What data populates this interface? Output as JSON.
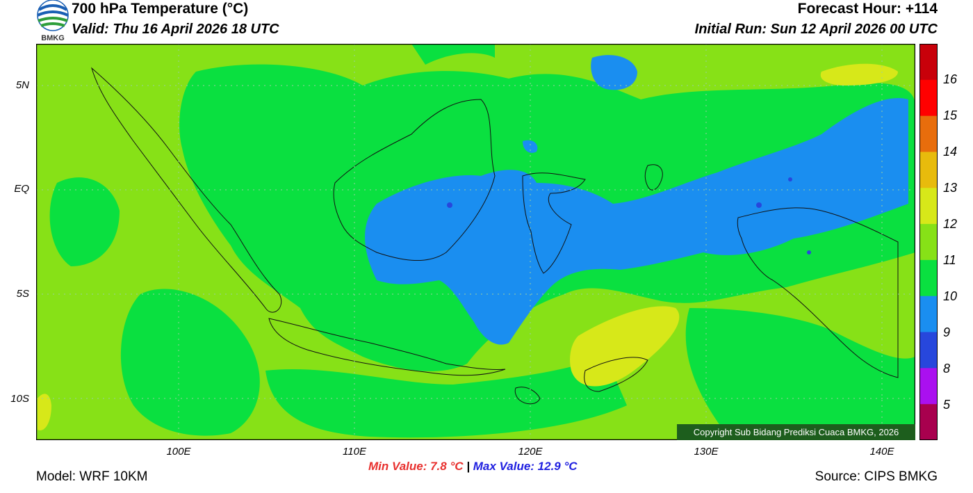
{
  "header": {
    "title": "700 hPa Temperature (°C)",
    "valid": "Valid: Thu 16 April 2026 18 UTC",
    "forecast_hour": "Forecast Hour: +114",
    "initial_run": "Initial Run: Sun 12 April 2026 00 UTC"
  },
  "logo": {
    "text": "BMKG"
  },
  "map": {
    "lat_ticks": [
      "5N",
      "EQ",
      "5S",
      "10S"
    ],
    "lon_ticks": [
      "100E",
      "110E",
      "120E",
      "130E",
      "140E"
    ],
    "copyright": "Copyright Sub Bidang Prediksi Cuaca BMKG, 2026"
  },
  "colorbar": {
    "labels": [
      "16",
      "15",
      "14",
      "13",
      "12",
      "11",
      "10",
      "9",
      "8",
      "5"
    ],
    "colors": [
      "#c8000a",
      "#ff0000",
      "#e86d0c",
      "#e8bb0c",
      "#d7e819",
      "#87e117",
      "#0ae040",
      "#1a8ef0",
      "#2747dc",
      "#aa10ef",
      "#a8004e"
    ]
  },
  "stats": {
    "min": "Min Value: 7.8 °C",
    "sep": "|",
    "max": "Max Value: 12.9 °C"
  },
  "footer": {
    "model": "Model: WRF 10KM",
    "source": "Source: CIPS BMKG"
  }
}
